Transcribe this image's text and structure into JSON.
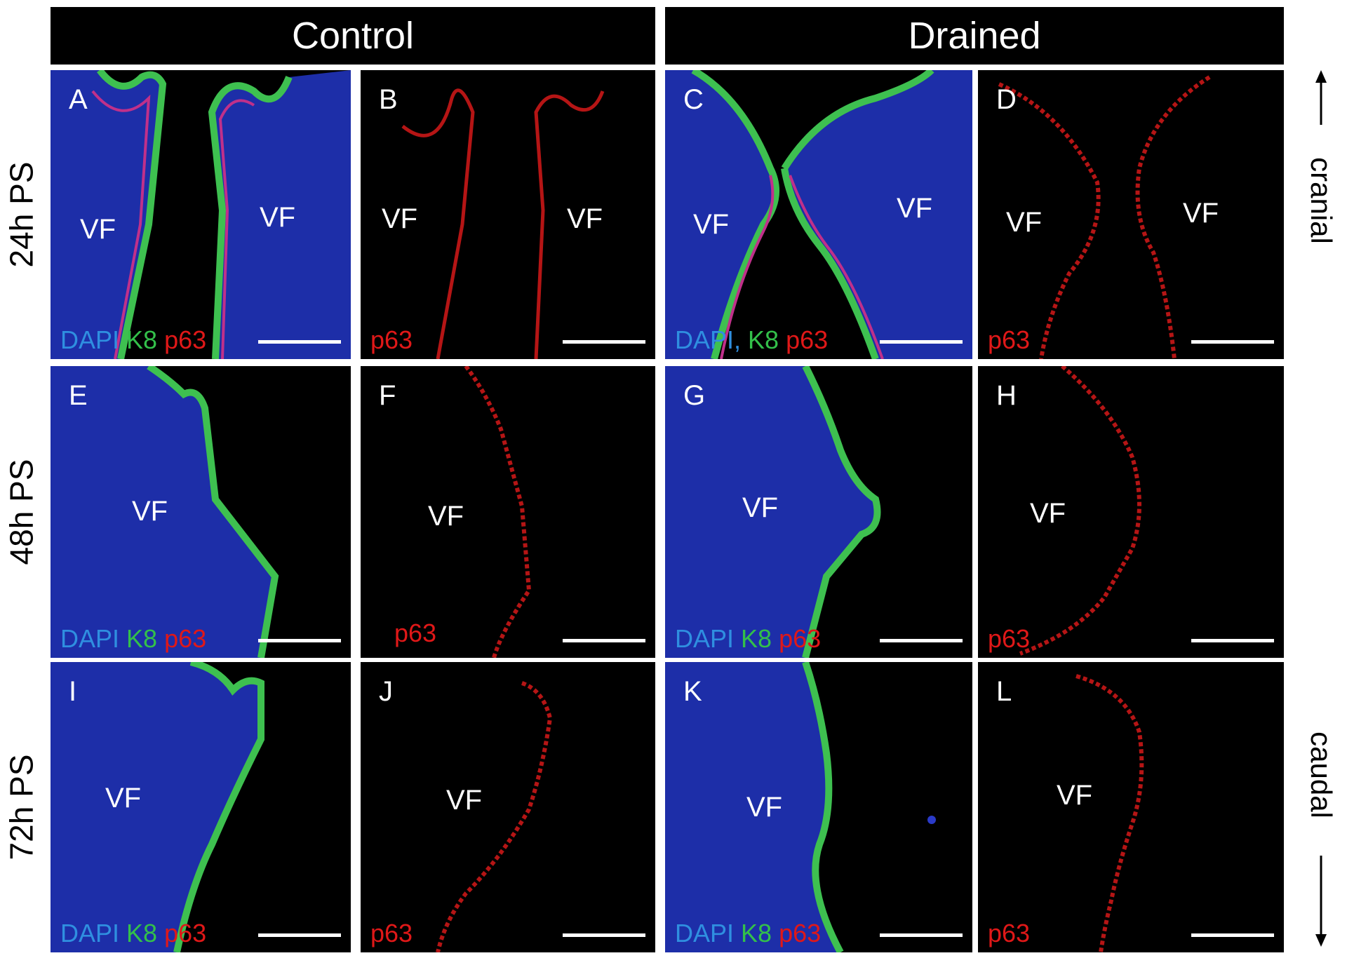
{
  "headers": {
    "control": "Control",
    "drained": "Drained"
  },
  "rows": [
    "24h PS",
    "48h PS",
    "72h PS"
  ],
  "axis": {
    "top": "cranial",
    "bottom": "caudal"
  },
  "region_label": "VF",
  "panels": [
    {
      "letter": "A",
      "stain": [
        "DAPI",
        "K8",
        "p63"
      ]
    },
    {
      "letter": "B",
      "stain": [
        "p63"
      ]
    },
    {
      "letter": "C",
      "stain": [
        "DAPI,",
        "K8",
        "p63"
      ]
    },
    {
      "letter": "D",
      "stain": [
        "p63"
      ]
    },
    {
      "letter": "E",
      "stain": [
        "DAPI",
        "K8",
        "p63"
      ]
    },
    {
      "letter": "F",
      "stain": [
        "p63"
      ]
    },
    {
      "letter": "G",
      "stain": [
        "DAPI",
        "K8",
        "p63"
      ]
    },
    {
      "letter": "H",
      "stain": [
        "p63"
      ]
    },
    {
      "letter": "I",
      "stain": [
        "DAPI",
        "K8",
        "p63"
      ]
    },
    {
      "letter": "J",
      "stain": [
        "p63"
      ]
    },
    {
      "letter": "K",
      "stain": [
        "DAPI",
        "K8",
        "p63"
      ]
    },
    {
      "letter": "L",
      "stain": [
        "p63"
      ]
    }
  ],
  "colors": {
    "dapi": "#2f8fe0",
    "k8": "#33c04a",
    "p63": "#e01818"
  }
}
